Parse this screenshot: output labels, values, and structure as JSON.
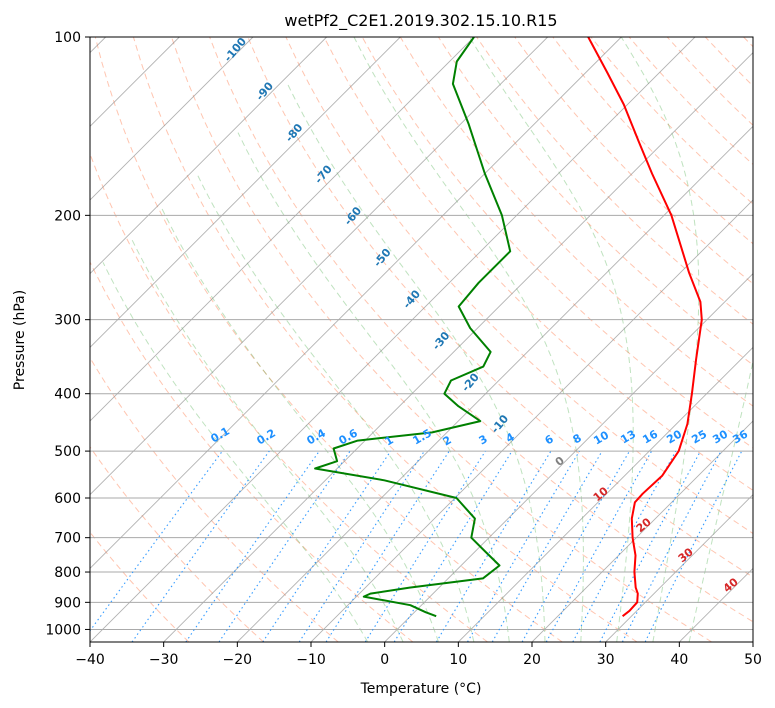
{
  "chart_data": {
    "type": "line",
    "chart_kind": "skew-T log-P diagram",
    "title": "wetPf2_C2E1.2019.302.15.10.R15",
    "xlabel": "Temperature (°C)",
    "ylabel": "Pressure (hPa)",
    "xlim": [
      -40,
      50
    ],
    "ylim": [
      1050,
      100
    ],
    "y_scale": "log",
    "grid": true,
    "x_ticks": [
      -40,
      -30,
      -20,
      -10,
      0,
      10,
      20,
      30,
      40,
      50
    ],
    "x_tick_labels": [
      "−40",
      "−30",
      "−20",
      "−10",
      "0",
      "10",
      "20",
      "30",
      "40",
      "50"
    ],
    "y_ticks": [
      100,
      200,
      300,
      400,
      500,
      600,
      700,
      800,
      900,
      1000
    ],
    "y_tick_labels": [
      "100",
      "200",
      "300",
      "400",
      "500",
      "600",
      "700",
      "800",
      "900",
      "1000"
    ],
    "series": [
      {
        "kind": "temperature",
        "color": "#ff0000",
        "points": [
          {
            "p": 950,
            "t": 28.8
          },
          {
            "p": 930,
            "t": 29.0
          },
          {
            "p": 900,
            "t": 28.9
          },
          {
            "p": 870,
            "t": 27.8
          },
          {
            "p": 850,
            "t": 26.7
          },
          {
            "p": 800,
            "t": 24.4
          },
          {
            "p": 750,
            "t": 22.3
          },
          {
            "p": 700,
            "t": 19.5
          },
          {
            "p": 650,
            "t": 16.8
          },
          {
            "p": 610,
            "t": 15.0
          },
          {
            "p": 590,
            "t": 14.9
          },
          {
            "p": 550,
            "t": 15.1
          },
          {
            "p": 500,
            "t": 14.0
          },
          {
            "p": 450,
            "t": 11.5
          },
          {
            "p": 400,
            "t": 8.0
          },
          {
            "p": 350,
            "t": 3.9
          },
          {
            "p": 300,
            "t": -0.7
          },
          {
            "p": 280,
            "t": -3.3
          },
          {
            "p": 250,
            "t": -8.8
          },
          {
            "p": 200,
            "t": -19.0
          },
          {
            "p": 170,
            "t": -27.3
          },
          {
            "p": 150,
            "t": -33.5
          },
          {
            "p": 130,
            "t": -40.5
          },
          {
            "p": 115,
            "t": -47.0
          },
          {
            "p": 100,
            "t": -54.5
          }
        ]
      },
      {
        "kind": "dewpoint",
        "color": "#008000",
        "points": [
          {
            "p": 950,
            "t": 3.5
          },
          {
            "p": 935,
            "t": 1.5
          },
          {
            "p": 910,
            "t": -1.5
          },
          {
            "p": 880,
            "t": -9.0
          },
          {
            "p": 870,
            "t": -8.5
          },
          {
            "p": 850,
            "t": -4.0
          },
          {
            "p": 820,
            "t": 4.7
          },
          {
            "p": 780,
            "t": 5.2
          },
          {
            "p": 740,
            "t": 1.5
          },
          {
            "p": 700,
            "t": -2.4
          },
          {
            "p": 650,
            "t": -4.5
          },
          {
            "p": 600,
            "t": -9.8
          },
          {
            "p": 560,
            "t": -22.0
          },
          {
            "p": 535,
            "t": -33.0
          },
          {
            "p": 520,
            "t": -31.0
          },
          {
            "p": 495,
            "t": -33.2
          },
          {
            "p": 480,
            "t": -31.0
          },
          {
            "p": 465,
            "t": -22.0
          },
          {
            "p": 445,
            "t": -17.0
          },
          {
            "p": 420,
            "t": -22.0
          },
          {
            "p": 400,
            "t": -25.6
          },
          {
            "p": 380,
            "t": -26.5
          },
          {
            "p": 360,
            "t": -24.0
          },
          {
            "p": 340,
            "t": -25.0
          },
          {
            "p": 310,
            "t": -31.0
          },
          {
            "p": 285,
            "t": -35.5
          },
          {
            "p": 260,
            "t": -36.0
          },
          {
            "p": 230,
            "t": -36.0
          },
          {
            "p": 200,
            "t": -42.0
          },
          {
            "p": 170,
            "t": -50.0
          },
          {
            "p": 140,
            "t": -59.0
          },
          {
            "p": 120,
            "t": -66.5
          },
          {
            "p": 110,
            "t": -69.0
          },
          {
            "p": 100,
            "t": -70.0
          }
        ]
      }
    ],
    "dry_adiabat_labels": [
      "-100",
      "-90",
      "-80",
      "-70",
      "-60",
      "-50",
      "-40",
      "-30",
      "-20",
      "-10"
    ],
    "mixing_ratio_labels": [
      "0.1",
      "0.2",
      "0.4",
      "0.6",
      "1",
      "1.5",
      "2",
      "3",
      "4",
      "6",
      "8",
      "10",
      "13",
      "16",
      "20",
      "25",
      "30",
      "36"
    ],
    "moist_adiabat_labels": [
      "0",
      "10",
      "20",
      "30",
      "40"
    ],
    "colors": {
      "temperature": "#ff0000",
      "dewpoint": "#008000",
      "dry_adiabat_label": "#1f77b4",
      "mixing_ratio_label": "#1e90ff",
      "moist_adiabat_label": "#d62728",
      "zero_label": "#808080"
    }
  }
}
